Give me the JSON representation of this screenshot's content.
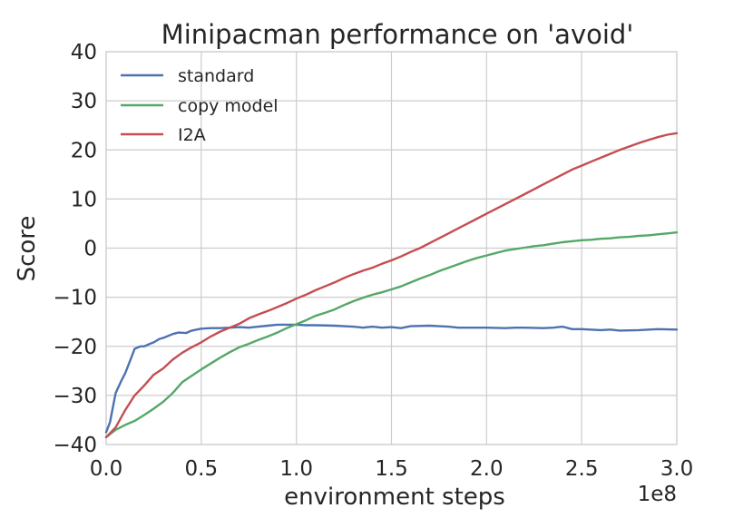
{
  "chart_data": {
    "type": "line",
    "title": "Minipacman performance on 'avoid'",
    "xlabel": "environment steps",
    "ylabel": "Score",
    "x_offset_label": "1e8",
    "xlim": [
      0.0,
      3.0
    ],
    "ylim": [
      -40,
      40
    ],
    "xticks": [
      0.0,
      0.5,
      1.0,
      1.5,
      2.0,
      2.5,
      3.0
    ],
    "xtick_labels": [
      "0.0",
      "0.5",
      "1.0",
      "1.5",
      "2.0",
      "2.5",
      "3.0"
    ],
    "yticks": [
      -40,
      -30,
      -20,
      -10,
      0,
      10,
      20,
      30,
      40
    ],
    "ytick_labels": [
      "−40",
      "−30",
      "−20",
      "−10",
      "0",
      "10",
      "20",
      "30",
      "40"
    ],
    "grid": true,
    "legend_position": "top-left",
    "series": [
      {
        "name": "standard",
        "color": "#4c72b0",
        "x": [
          0.0,
          0.02,
          0.05,
          0.08,
          0.1,
          0.13,
          0.15,
          0.18,
          0.2,
          0.23,
          0.25,
          0.28,
          0.3,
          0.35,
          0.38,
          0.42,
          0.45,
          0.5,
          0.55,
          0.6,
          0.65,
          0.7,
          0.75,
          0.8,
          0.85,
          0.9,
          0.95,
          1.0,
          1.05,
          1.1,
          1.2,
          1.3,
          1.35,
          1.4,
          1.45,
          1.5,
          1.55,
          1.6,
          1.7,
          1.75,
          1.8,
          1.85,
          1.9,
          2.0,
          2.1,
          2.15,
          2.2,
          2.3,
          2.35,
          2.4,
          2.45,
          2.5,
          2.6,
          2.65,
          2.7,
          2.8,
          2.9,
          3.0
        ],
        "y": [
          -37.5,
          -35.5,
          -29.5,
          -27,
          -25.5,
          -22.5,
          -20.5,
          -20,
          -20,
          -19.5,
          -19.2,
          -18.5,
          -18.3,
          -17.5,
          -17.2,
          -17.3,
          -16.8,
          -16.4,
          -16.3,
          -16.3,
          -16.2,
          -16.1,
          -16.2,
          -16.0,
          -15.8,
          -15.6,
          -15.6,
          -15.6,
          -15.7,
          -15.7,
          -15.8,
          -16.0,
          -16.2,
          -16.0,
          -16.2,
          -16.1,
          -16.3,
          -15.9,
          -15.8,
          -15.9,
          -16.0,
          -16.2,
          -16.2,
          -16.2,
          -16.3,
          -16.2,
          -16.2,
          -16.3,
          -16.2,
          -16.0,
          -16.5,
          -16.5,
          -16.7,
          -16.6,
          -16.8,
          -16.7,
          -16.5,
          -16.6
        ]
      },
      {
        "name": "copy model",
        "color": "#55a868",
        "x": [
          0.0,
          0.05,
          0.1,
          0.15,
          0.2,
          0.25,
          0.3,
          0.35,
          0.4,
          0.45,
          0.5,
          0.55,
          0.6,
          0.65,
          0.7,
          0.75,
          0.8,
          0.85,
          0.9,
          0.95,
          1.0,
          1.05,
          1.1,
          1.15,
          1.2,
          1.25,
          1.3,
          1.35,
          1.4,
          1.45,
          1.5,
          1.55,
          1.6,
          1.65,
          1.7,
          1.75,
          1.8,
          1.85,
          1.9,
          1.95,
          2.0,
          2.05,
          2.1,
          2.15,
          2.2,
          2.25,
          2.3,
          2.35,
          2.4,
          2.45,
          2.5,
          2.55,
          2.6,
          2.65,
          2.7,
          2.75,
          2.8,
          2.85,
          2.9,
          2.95,
          3.0
        ],
        "y": [
          -38.5,
          -37,
          -36,
          -35.2,
          -34,
          -32.7,
          -31.3,
          -29.5,
          -27.3,
          -26,
          -24.7,
          -23.5,
          -22.3,
          -21.2,
          -20.2,
          -19.5,
          -18.7,
          -18,
          -17.2,
          -16.3,
          -15.5,
          -14.7,
          -13.8,
          -13.2,
          -12.5,
          -11.6,
          -10.8,
          -10.1,
          -9.5,
          -9.0,
          -8.4,
          -7.8,
          -7.0,
          -6.2,
          -5.5,
          -4.7,
          -4.0,
          -3.3,
          -2.6,
          -2.0,
          -1.5,
          -1.0,
          -0.5,
          -0.2,
          0.1,
          0.4,
          0.6,
          0.9,
          1.2,
          1.4,
          1.6,
          1.7,
          1.9,
          2.0,
          2.2,
          2.3,
          2.5,
          2.6,
          2.8,
          3.0,
          3.2
        ]
      },
      {
        "name": "I2A",
        "color": "#c44e52",
        "x": [
          0.0,
          0.05,
          0.1,
          0.15,
          0.2,
          0.25,
          0.3,
          0.35,
          0.4,
          0.45,
          0.5,
          0.55,
          0.6,
          0.65,
          0.7,
          0.75,
          0.8,
          0.85,
          0.9,
          0.95,
          1.0,
          1.05,
          1.1,
          1.15,
          1.2,
          1.25,
          1.3,
          1.35,
          1.4,
          1.45,
          1.5,
          1.55,
          1.6,
          1.65,
          1.7,
          1.75,
          1.8,
          1.85,
          1.9,
          1.95,
          2.0,
          2.05,
          2.1,
          2.15,
          2.2,
          2.25,
          2.3,
          2.35,
          2.4,
          2.45,
          2.5,
          2.55,
          2.6,
          2.65,
          2.7,
          2.75,
          2.8,
          2.85,
          2.9,
          2.95,
          3.0
        ],
        "y": [
          -38.5,
          -36.5,
          -33,
          -30,
          -28,
          -25.8,
          -24.5,
          -22.7,
          -21.3,
          -20.2,
          -19.2,
          -18,
          -17,
          -16.2,
          -15.4,
          -14.3,
          -13.5,
          -12.8,
          -12.0,
          -11.2,
          -10.3,
          -9.5,
          -8.6,
          -7.8,
          -7.0,
          -6.1,
          -5.3,
          -4.6,
          -4.0,
          -3.2,
          -2.5,
          -1.7,
          -0.8,
          0.0,
          1.0,
          2.0,
          3.0,
          4.0,
          5.0,
          6.0,
          7.0,
          8.0,
          9.0,
          10.0,
          11.0,
          12.0,
          13.0,
          14.0,
          15.0,
          16.0,
          16.8,
          17.6,
          18.4,
          19.2,
          20.0,
          20.7,
          21.4,
          22.0,
          22.6,
          23.1,
          23.4
        ]
      }
    ]
  }
}
